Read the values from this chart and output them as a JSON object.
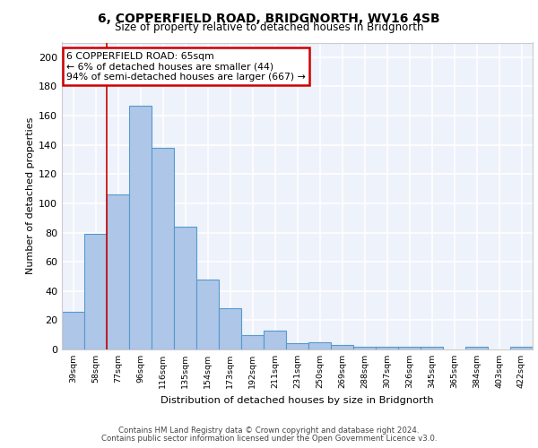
{
  "title1": "6, COPPERFIELD ROAD, BRIDGNORTH, WV16 4SB",
  "title2": "Size of property relative to detached houses in Bridgnorth",
  "xlabel": "Distribution of detached houses by size in Bridgnorth",
  "ylabel": "Number of detached properties",
  "categories": [
    "39sqm",
    "58sqm",
    "77sqm",
    "96sqm",
    "116sqm",
    "135sqm",
    "154sqm",
    "173sqm",
    "192sqm",
    "211sqm",
    "231sqm",
    "250sqm",
    "269sqm",
    "288sqm",
    "307sqm",
    "326sqm",
    "345sqm",
    "365sqm",
    "384sqm",
    "403sqm",
    "422sqm"
  ],
  "values": [
    26,
    79,
    106,
    167,
    138,
    84,
    48,
    28,
    10,
    13,
    4,
    5,
    3,
    2,
    2,
    2,
    2,
    0,
    2,
    0,
    2
  ],
  "bar_color": "#aec6e8",
  "bar_edge_color": "#5599cc",
  "red_line_x": 1.5,
  "annotation_text": "6 COPPERFIELD ROAD: 65sqm\n← 6% of detached houses are smaller (44)\n94% of semi-detached houses are larger (667) →",
  "annotation_box_color": "#ffffff",
  "annotation_box_edge_color": "#cc0000",
  "ylim": [
    0,
    210
  ],
  "yticks": [
    0,
    20,
    40,
    60,
    80,
    100,
    120,
    140,
    160,
    180,
    200
  ],
  "footer1": "Contains HM Land Registry data © Crown copyright and database right 2024.",
  "footer2": "Contains public sector information licensed under the Open Government Licence v3.0.",
  "bg_color": "#eef2fb",
  "grid_color": "#ffffff"
}
